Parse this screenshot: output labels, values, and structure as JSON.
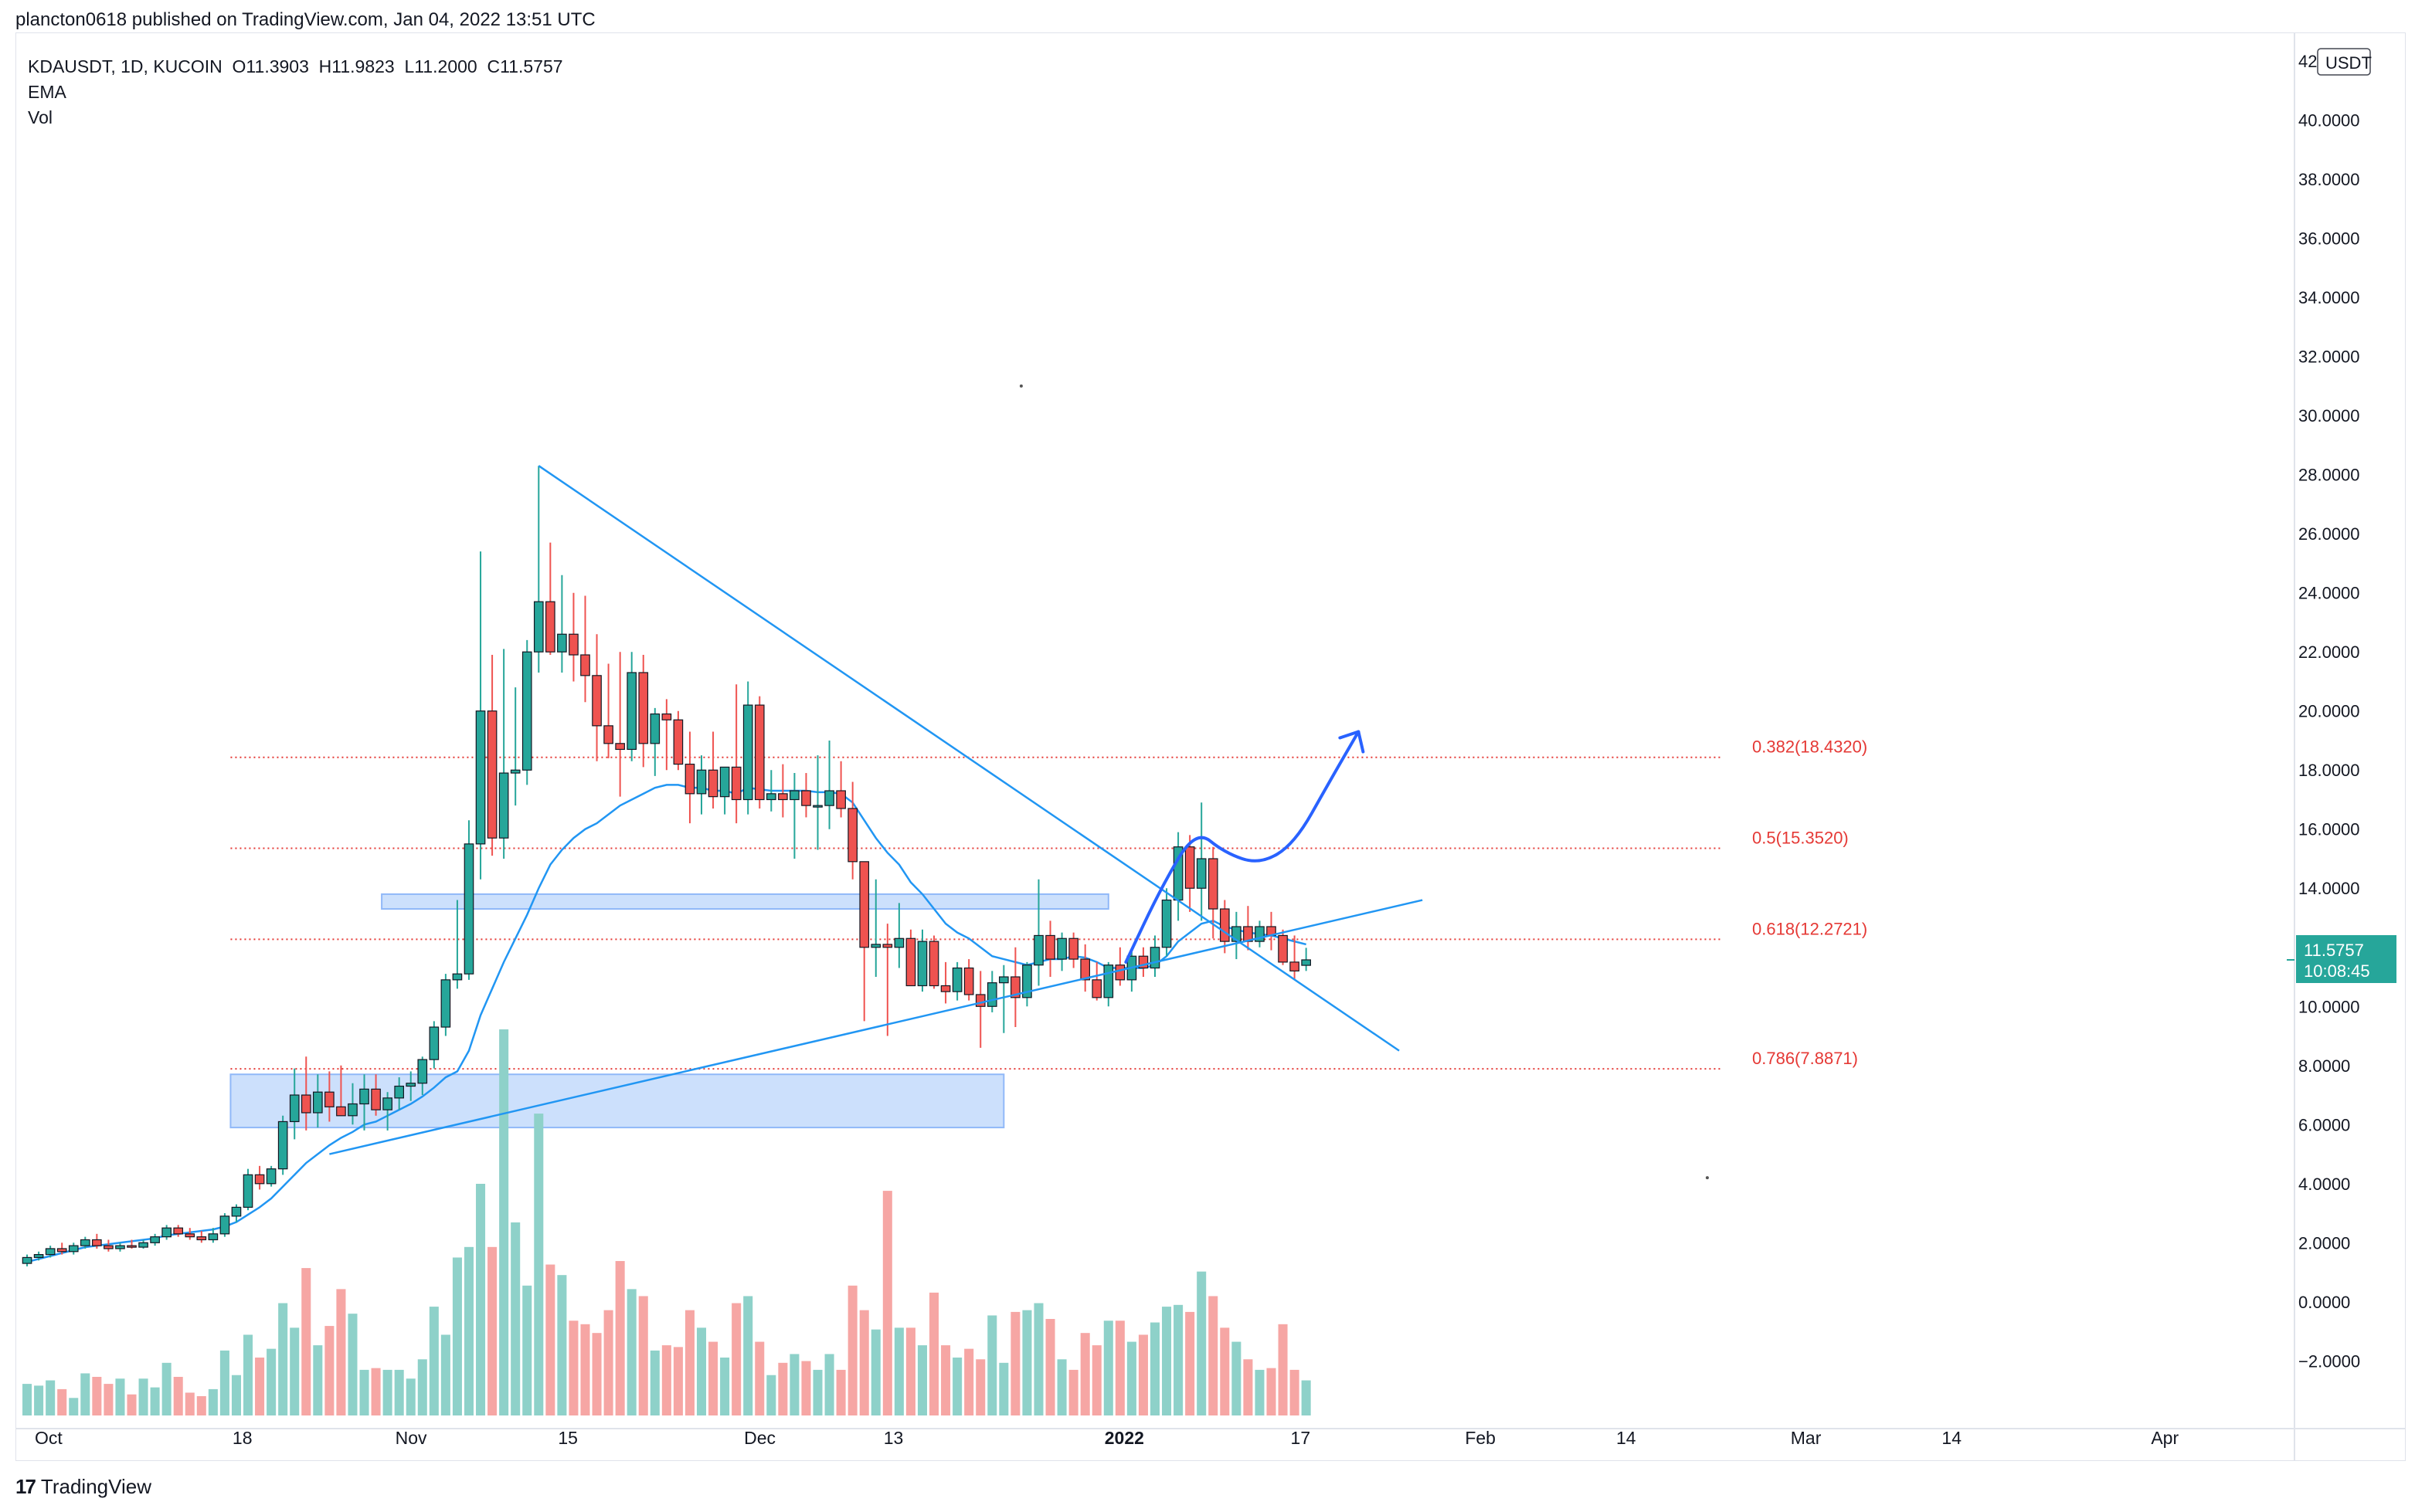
{
  "header": {
    "published": "plancton0618 published on TradingView.com, Jan 04, 2022 13:51 UTC"
  },
  "legend": {
    "symbol": "KDAUSDT, 1D, KUCOIN",
    "open": "O11.3903",
    "high": "H11.9823",
    "low": "L11.2000",
    "close": "C11.5757",
    "ema_label": "EMA",
    "vol_label": "Vol"
  },
  "footer": {
    "brand": "TradingView",
    "logo_text": "17"
  },
  "colors": {
    "up": "#26a69a",
    "down": "#ef5350",
    "up_vol": "#8ed1c9",
    "down_vol": "#f6a6a4",
    "ema": "#2196f3",
    "fib": "#e53935",
    "zone": "#bbd5fb",
    "zone_border": "#90b8f8",
    "trend": "#2196f3",
    "projection": "#2962ff",
    "price_tag": "#26a69a"
  },
  "chart_data": {
    "type": "candlestick",
    "title": "KDAUSDT, 1D, KUCOIN",
    "quote_currency": "USDT",
    "ylim": [
      -3.9,
      42.5
    ],
    "y_ticks": [
      -2,
      0,
      2,
      4,
      6,
      8,
      10,
      12,
      14,
      16,
      18,
      20,
      22,
      24,
      26,
      28,
      30,
      32,
      34,
      36,
      38,
      40,
      42
    ],
    "y_tick_labels": [
      "−2.0000",
      "0.0000",
      "2.0000",
      "4.0000",
      "6.0000",
      "8.0000",
      "10.0000",
      "12.0000",
      "14.0000",
      "16.0000",
      "18.0000",
      "20.0000",
      "22.0000",
      "24.0000",
      "26.0000",
      "28.0000",
      "30.0000",
      "32.0000",
      "34.0000",
      "36.0000",
      "38.0000",
      "40.0000",
      "42.0000"
    ],
    "x_range_days": [
      -1,
      195
    ],
    "x_date_labels": [
      {
        "day": 0,
        "label": "Oct"
      },
      {
        "day": 17,
        "label": "18"
      },
      {
        "day": 31,
        "label": "Nov"
      },
      {
        "day": 45,
        "label": "15"
      },
      {
        "day": 61,
        "label": "Dec"
      },
      {
        "day": 73,
        "label": "13"
      },
      {
        "day": 92,
        "label": "2022",
        "bold": true
      },
      {
        "day": 108,
        "label": "17"
      },
      {
        "day": 123,
        "label": "Feb"
      },
      {
        "day": 136,
        "label": "14"
      },
      {
        "day": 151,
        "label": "Mar"
      },
      {
        "day": 164,
        "label": "14"
      },
      {
        "day": 182,
        "label": "Apr"
      }
    ],
    "last_price": "11.5757",
    "countdown": "10:08:45",
    "candles": [
      {
        "o": 1.3,
        "h": 1.6,
        "l": 1.2,
        "c": 1.5,
        "v": 0.9
      },
      {
        "o": 1.5,
        "h": 1.7,
        "l": 1.4,
        "c": 1.6,
        "v": 0.85
      },
      {
        "o": 1.6,
        "h": 1.9,
        "l": 1.5,
        "c": 1.8,
        "v": 1.0
      },
      {
        "o": 1.8,
        "h": 2.0,
        "l": 1.6,
        "c": 1.7,
        "v": 0.75
      },
      {
        "o": 1.7,
        "h": 2.0,
        "l": 1.6,
        "c": 1.9,
        "v": 0.5
      },
      {
        "o": 1.9,
        "h": 2.2,
        "l": 1.8,
        "c": 2.1,
        "v": 1.2
      },
      {
        "o": 2.1,
        "h": 2.3,
        "l": 1.8,
        "c": 1.9,
        "v": 1.1
      },
      {
        "o": 1.9,
        "h": 2.1,
        "l": 1.7,
        "c": 1.8,
        "v": 0.9
      },
      {
        "o": 1.8,
        "h": 2.0,
        "l": 1.7,
        "c": 1.9,
        "v": 1.05
      },
      {
        "o": 1.9,
        "h": 2.1,
        "l": 1.8,
        "c": 1.85,
        "v": 0.6
      },
      {
        "o": 1.85,
        "h": 2.1,
        "l": 1.8,
        "c": 2.0,
        "v": 1.05
      },
      {
        "o": 2.0,
        "h": 2.3,
        "l": 1.9,
        "c": 2.2,
        "v": 0.8
      },
      {
        "o": 2.2,
        "h": 2.6,
        "l": 2.1,
        "c": 2.5,
        "v": 1.5
      },
      {
        "o": 2.5,
        "h": 2.6,
        "l": 2.2,
        "c": 2.3,
        "v": 1.1
      },
      {
        "o": 2.3,
        "h": 2.5,
        "l": 2.1,
        "c": 2.2,
        "v": 0.65
      },
      {
        "o": 2.2,
        "h": 2.4,
        "l": 2.0,
        "c": 2.1,
        "v": 0.55
      },
      {
        "o": 2.1,
        "h": 2.5,
        "l": 2.0,
        "c": 2.3,
        "v": 0.75
      },
      {
        "o": 2.3,
        "h": 3.0,
        "l": 2.2,
        "c": 2.9,
        "v": 1.85
      },
      {
        "o": 2.9,
        "h": 3.3,
        "l": 2.7,
        "c": 3.2,
        "v": 1.15
      },
      {
        "o": 3.2,
        "h": 4.5,
        "l": 3.1,
        "c": 4.3,
        "v": 2.3
      },
      {
        "o": 4.3,
        "h": 4.6,
        "l": 3.8,
        "c": 4.0,
        "v": 1.65
      },
      {
        "o": 4.0,
        "h": 4.6,
        "l": 3.9,
        "c": 4.5,
        "v": 1.9
      },
      {
        "o": 4.5,
        "h": 6.3,
        "l": 4.3,
        "c": 6.1,
        "v": 3.2
      },
      {
        "o": 6.1,
        "h": 7.9,
        "l": 5.5,
        "c": 7.0,
        "v": 2.5
      },
      {
        "o": 7.0,
        "h": 8.3,
        "l": 5.8,
        "c": 6.4,
        "v": 4.2
      },
      {
        "o": 6.4,
        "h": 7.7,
        "l": 5.9,
        "c": 7.1,
        "v": 2.0
      },
      {
        "o": 7.1,
        "h": 7.8,
        "l": 6.1,
        "c": 6.6,
        "v": 2.55
      },
      {
        "o": 6.6,
        "h": 8.0,
        "l": 6.3,
        "c": 6.3,
        "v": 3.6
      },
      {
        "o": 6.3,
        "h": 7.4,
        "l": 6.0,
        "c": 6.7,
        "v": 2.9
      },
      {
        "o": 6.7,
        "h": 7.7,
        "l": 5.8,
        "c": 7.2,
        "v": 1.3
      },
      {
        "o": 7.2,
        "h": 7.7,
        "l": 6.3,
        "c": 6.5,
        "v": 1.35
      },
      {
        "o": 6.5,
        "h": 7.1,
        "l": 5.8,
        "c": 6.9,
        "v": 1.3
      },
      {
        "o": 6.9,
        "h": 7.6,
        "l": 6.5,
        "c": 7.3,
        "v": 1.3
      },
      {
        "o": 7.3,
        "h": 7.8,
        "l": 6.8,
        "c": 7.4,
        "v": 1.05
      },
      {
        "o": 7.4,
        "h": 8.3,
        "l": 7.0,
        "c": 8.2,
        "v": 1.6
      },
      {
        "o": 8.2,
        "h": 9.5,
        "l": 7.9,
        "c": 9.3,
        "v": 3.1
      },
      {
        "o": 9.3,
        "h": 11.1,
        "l": 9.0,
        "c": 10.9,
        "v": 2.3
      },
      {
        "o": 10.9,
        "h": 13.6,
        "l": 10.6,
        "c": 11.1,
        "v": 4.5
      },
      {
        "o": 11.1,
        "h": 16.3,
        "l": 10.9,
        "c": 15.5,
        "v": 4.8
      },
      {
        "o": 15.5,
        "h": 25.4,
        "l": 14.3,
        "c": 20.0,
        "v": 6.6
      },
      {
        "o": 20.0,
        "h": 21.9,
        "l": 15.1,
        "c": 15.7,
        "v": 4.8
      },
      {
        "o": 15.7,
        "h": 22.1,
        "l": 15.0,
        "c": 17.9,
        "v": 11.0
      },
      {
        "o": 17.9,
        "h": 20.8,
        "l": 16.8,
        "c": 18.0,
        "v": 5.5
      },
      {
        "o": 18.0,
        "h": 22.4,
        "l": 17.5,
        "c": 22.0,
        "v": 3.7
      },
      {
        "o": 22.0,
        "h": 28.3,
        "l": 21.3,
        "c": 23.7,
        "v": 8.6
      },
      {
        "o": 23.7,
        "h": 25.7,
        "l": 21.9,
        "c": 22.0,
        "v": 4.3
      },
      {
        "o": 22.0,
        "h": 24.6,
        "l": 21.3,
        "c": 22.6,
        "v": 4.0
      },
      {
        "o": 22.6,
        "h": 24.0,
        "l": 21.0,
        "c": 21.9,
        "v": 2.7
      },
      {
        "o": 21.9,
        "h": 23.9,
        "l": 20.3,
        "c": 21.2,
        "v": 2.6
      },
      {
        "o": 21.2,
        "h": 22.6,
        "l": 18.3,
        "c": 19.5,
        "v": 2.35
      },
      {
        "o": 19.5,
        "h": 21.6,
        "l": 18.4,
        "c": 18.9,
        "v": 3.0
      },
      {
        "o": 18.9,
        "h": 22.0,
        "l": 17.1,
        "c": 18.7,
        "v": 4.4
      },
      {
        "o": 18.7,
        "h": 22.0,
        "l": 18.3,
        "c": 21.3,
        "v": 3.6
      },
      {
        "o": 21.3,
        "h": 21.9,
        "l": 18.1,
        "c": 18.9,
        "v": 3.4
      },
      {
        "o": 18.9,
        "h": 20.1,
        "l": 17.8,
        "c": 19.9,
        "v": 1.85
      },
      {
        "o": 19.9,
        "h": 20.4,
        "l": 18.0,
        "c": 19.7,
        "v": 2.0
      },
      {
        "o": 19.7,
        "h": 20.0,
        "l": 18.0,
        "c": 18.2,
        "v": 1.95
      },
      {
        "o": 18.2,
        "h": 19.3,
        "l": 16.2,
        "c": 17.2,
        "v": 3.0
      },
      {
        "o": 17.2,
        "h": 18.5,
        "l": 16.5,
        "c": 18.0,
        "v": 2.5
      },
      {
        "o": 18.0,
        "h": 19.3,
        "l": 16.7,
        "c": 17.1,
        "v": 2.1
      },
      {
        "o": 17.1,
        "h": 18.1,
        "l": 16.5,
        "c": 18.1,
        "v": 1.65
      },
      {
        "o": 18.1,
        "h": 20.9,
        "l": 16.2,
        "c": 17.0,
        "v": 3.2
      },
      {
        "o": 17.0,
        "h": 21.0,
        "l": 16.5,
        "c": 20.2,
        "v": 3.4
      },
      {
        "o": 20.2,
        "h": 20.5,
        "l": 16.7,
        "c": 17.0,
        "v": 2.1
      },
      {
        "o": 17.0,
        "h": 18.0,
        "l": 16.6,
        "c": 17.2,
        "v": 1.15
      },
      {
        "o": 17.2,
        "h": 18.2,
        "l": 16.4,
        "c": 17.0,
        "v": 1.5
      },
      {
        "o": 17.0,
        "h": 17.9,
        "l": 15.0,
        "c": 17.3,
        "v": 1.75
      },
      {
        "o": 17.3,
        "h": 17.9,
        "l": 16.4,
        "c": 16.8,
        "v": 1.55
      },
      {
        "o": 16.8,
        "h": 18.5,
        "l": 15.3,
        "c": 16.8,
        "v": 1.3
      },
      {
        "o": 16.8,
        "h": 19.0,
        "l": 16.0,
        "c": 17.3,
        "v": 1.75
      },
      {
        "o": 17.3,
        "h": 18.3,
        "l": 16.4,
        "c": 16.7,
        "v": 1.3
      },
      {
        "o": 16.7,
        "h": 17.6,
        "l": 14.3,
        "c": 14.9,
        "v": 3.7
      },
      {
        "o": 14.9,
        "h": 14.9,
        "l": 9.5,
        "c": 12.0,
        "v": 3.0
      },
      {
        "o": 12.0,
        "h": 14.3,
        "l": 11.0,
        "c": 12.1,
        "v": 2.45
      },
      {
        "o": 12.1,
        "h": 12.8,
        "l": 9.0,
        "c": 12.0,
        "v": 6.4
      },
      {
        "o": 12.0,
        "h": 13.5,
        "l": 11.3,
        "c": 12.3,
        "v": 2.5
      },
      {
        "o": 12.3,
        "h": 12.6,
        "l": 10.7,
        "c": 10.7,
        "v": 2.5
      },
      {
        "o": 10.7,
        "h": 12.6,
        "l": 10.5,
        "c": 12.2,
        "v": 2.0
      },
      {
        "o": 12.2,
        "h": 12.4,
        "l": 10.6,
        "c": 10.7,
        "v": 3.5
      },
      {
        "o": 10.7,
        "h": 11.5,
        "l": 10.1,
        "c": 10.5,
        "v": 2.0
      },
      {
        "o": 10.5,
        "h": 11.5,
        "l": 10.2,
        "c": 11.3,
        "v": 1.65
      },
      {
        "o": 11.3,
        "h": 11.6,
        "l": 10.2,
        "c": 10.4,
        "v": 1.9
      },
      {
        "o": 10.4,
        "h": 11.2,
        "l": 8.6,
        "c": 10.0,
        "v": 1.6
      },
      {
        "o": 10.0,
        "h": 11.2,
        "l": 9.8,
        "c": 10.8,
        "v": 2.85
      },
      {
        "o": 10.8,
        "h": 11.4,
        "l": 9.1,
        "c": 11.0,
        "v": 1.5
      },
      {
        "o": 11.0,
        "h": 12.0,
        "l": 9.3,
        "c": 10.3,
        "v": 2.95
      },
      {
        "o": 10.3,
        "h": 11.5,
        "l": 10.0,
        "c": 11.4,
        "v": 3.0
      },
      {
        "o": 11.4,
        "h": 14.3,
        "l": 10.7,
        "c": 12.4,
        "v": 3.2
      },
      {
        "o": 12.4,
        "h": 12.9,
        "l": 11.0,
        "c": 11.6,
        "v": 2.75
      },
      {
        "o": 11.6,
        "h": 12.5,
        "l": 11.2,
        "c": 12.3,
        "v": 1.6
      },
      {
        "o": 12.3,
        "h": 12.5,
        "l": 11.3,
        "c": 11.6,
        "v": 1.3
      },
      {
        "o": 11.6,
        "h": 12.1,
        "l": 10.5,
        "c": 10.9,
        "v": 2.35
      },
      {
        "o": 10.9,
        "h": 11.5,
        "l": 10.2,
        "c": 10.3,
        "v": 2.0
      },
      {
        "o": 10.3,
        "h": 11.5,
        "l": 10.0,
        "c": 11.4,
        "v": 2.7
      },
      {
        "o": 11.4,
        "h": 12.0,
        "l": 10.7,
        "c": 10.9,
        "v": 2.7
      },
      {
        "o": 10.9,
        "h": 11.9,
        "l": 10.5,
        "c": 11.7,
        "v": 2.1
      },
      {
        "o": 11.7,
        "h": 12.0,
        "l": 11.0,
        "c": 11.3,
        "v": 2.3
      },
      {
        "o": 11.3,
        "h": 12.4,
        "l": 11.0,
        "c": 12.0,
        "v": 2.65
      },
      {
        "o": 12.0,
        "h": 14.0,
        "l": 11.7,
        "c": 13.6,
        "v": 3.1
      },
      {
        "o": 13.6,
        "h": 15.9,
        "l": 12.9,
        "c": 15.4,
        "v": 3.15
      },
      {
        "o": 15.4,
        "h": 15.8,
        "l": 13.2,
        "c": 14.0,
        "v": 2.95
      },
      {
        "o": 14.0,
        "h": 16.9,
        "l": 12.9,
        "c": 15.0,
        "v": 4.1
      },
      {
        "o": 15.0,
        "h": 15.4,
        "l": 12.3,
        "c": 13.3,
        "v": 3.4
      },
      {
        "o": 13.3,
        "h": 13.6,
        "l": 11.8,
        "c": 12.2,
        "v": 2.5
      },
      {
        "o": 12.2,
        "h": 13.2,
        "l": 11.6,
        "c": 12.7,
        "v": 2.1
      },
      {
        "o": 12.7,
        "h": 13.4,
        "l": 11.9,
        "c": 12.2,
        "v": 1.6
      },
      {
        "o": 12.2,
        "h": 12.9,
        "l": 12.0,
        "c": 12.7,
        "v": 1.3
      },
      {
        "o": 12.7,
        "h": 13.2,
        "l": 11.9,
        "c": 12.4,
        "v": 1.35
      },
      {
        "o": 12.4,
        "h": 12.6,
        "l": 11.4,
        "c": 11.5,
        "v": 2.6
      },
      {
        "o": 11.5,
        "h": 12.4,
        "l": 10.9,
        "c": 11.2,
        "v": 1.3
      },
      {
        "o": 11.3903,
        "h": 11.9823,
        "l": 11.2,
        "c": 11.5757,
        "v": 1.0
      }
    ],
    "ema": [
      1.35,
      1.45,
      1.55,
      1.65,
      1.75,
      1.85,
      1.9,
      1.95,
      2.0,
      2.05,
      2.1,
      2.15,
      2.25,
      2.3,
      2.35,
      2.4,
      2.45,
      2.55,
      2.7,
      2.95,
      3.2,
      3.5,
      3.9,
      4.3,
      4.7,
      5.0,
      5.3,
      5.55,
      5.75,
      6.0,
      6.1,
      6.3,
      6.5,
      6.7,
      6.95,
      7.25,
      7.6,
      7.8,
      8.5,
      9.7,
      10.6,
      11.5,
      12.3,
      13.1,
      14.0,
      14.8,
      15.3,
      15.7,
      16.0,
      16.2,
      16.5,
      16.8,
      17.0,
      17.2,
      17.4,
      17.5,
      17.5,
      17.4,
      17.4,
      17.3,
      17.3,
      17.2,
      17.4,
      17.35,
      17.3,
      17.3,
      17.3,
      17.3,
      17.25,
      17.25,
      17.2,
      16.9,
      16.3,
      15.7,
      15.2,
      14.8,
      14.2,
      13.8,
      13.3,
      12.8,
      12.5,
      12.3,
      12.0,
      11.7,
      11.6,
      11.5,
      11.4,
      11.5,
      11.6,
      11.6,
      11.7,
      11.65,
      11.5,
      11.3,
      11.3,
      11.3,
      11.3,
      11.4,
      11.7,
      12.2,
      12.5,
      12.8,
      12.9,
      12.7,
      12.6,
      12.5,
      12.45,
      12.4,
      12.3,
      12.2,
      12.1
    ],
    "zones": [
      {
        "from_day": 17.5,
        "to_day": 84,
        "low": 5.9,
        "high": 7.7
      },
      {
        "from_day": 30.5,
        "to_day": 93,
        "low": 13.3,
        "high": 13.8
      }
    ],
    "fib_levels": [
      {
        "value": 18.432,
        "label": "0.382(18.4320)"
      },
      {
        "value": 15.352,
        "label": "0.5(15.3520)"
      },
      {
        "value": 12.2721,
        "label": "0.618(12.2721)"
      },
      {
        "value": 7.8871,
        "label": "0.786(7.8871)"
      }
    ],
    "fib_from_day": 17.5,
    "trendlines": [
      {
        "name": "descending-trendline",
        "x1": 44,
        "y1": 28.3,
        "x2": 118,
        "y2": 8.5
      },
      {
        "name": "ascending-trendline",
        "x1": 26,
        "y1": 5.0,
        "x2": 120,
        "y2": 13.6
      }
    ],
    "projection": [
      [
        94.5,
        11.5
      ],
      [
        97.5,
        14.0
      ],
      [
        100.5,
        16.0
      ],
      [
        103,
        15.2
      ],
      [
        106,
        14.8
      ],
      [
        109,
        15.5
      ],
      [
        112,
        17.6
      ],
      [
        114.5,
        19.3
      ]
    ],
    "stray_dots": [
      [
        85.5,
        31.0
      ],
      [
        144.5,
        4.2
      ]
    ]
  }
}
